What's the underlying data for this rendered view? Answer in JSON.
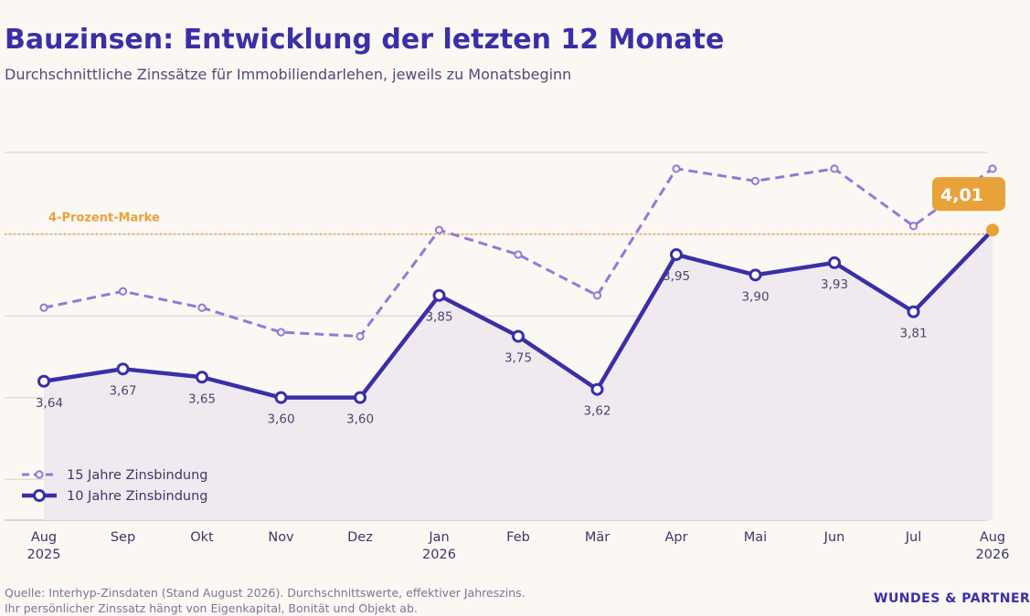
{
  "header": {
    "title": "Bauzinsen: Entwicklung der letzten 12 Monate",
    "subtitle": "Durchschnittliche Zinssätze für Immobiliendarlehen, jeweils zu Monatsbeginn"
  },
  "chart_data": {
    "type": "line",
    "categories": [
      "Aug\n2025",
      "Sep",
      "Okt",
      "Nov",
      "Dez",
      "Jan\n2026",
      "Feb",
      "Mär",
      "Apr",
      "Mai",
      "Jun",
      "Jul",
      "Aug\n2026"
    ],
    "series": [
      {
        "name": "15 Jahre Zinsbindung",
        "values": [
          3.82,
          3.86,
          3.82,
          3.76,
          3.75,
          4.01,
          3.95,
          3.85,
          4.16,
          4.13,
          4.16,
          4.02,
          4.16
        ],
        "style": "dashed",
        "color": "#9478d8"
      },
      {
        "name": "10 Jahre Zinsbindung",
        "values": [
          3.64,
          3.67,
          3.65,
          3.6,
          3.6,
          3.85,
          3.75,
          3.62,
          3.95,
          3.9,
          3.93,
          3.81,
          4.01
        ],
        "labels": [
          "3,64",
          "3,67",
          "3,65",
          "3,60",
          "3,60",
          "3,85",
          "3,75",
          "3,62",
          "3,95",
          "3,90",
          "3,93",
          "3,81",
          "4,01"
        ],
        "style": "solid",
        "color": "#3a2fa8",
        "fill_color": "#eee8f0"
      }
    ],
    "ylim": [
      3.3,
      4.2
    ],
    "grid": "horizontal",
    "reference_line": {
      "value": 4.0,
      "label": "4-Prozent-Marke",
      "color": "#e8a23a"
    },
    "highlight": {
      "index": 12,
      "label": "4,01",
      "color": "#e8a23a"
    },
    "legend_position": "bottom-left"
  },
  "footer": {
    "source_line1": "Quelle: Interhyp-Zinsdaten (Stand August 2026). Durchschnittswerte, effektiver Jahreszins.",
    "source_line2": "Ihr persönlicher Zinssatz hängt von Eigenkapital, Bonität und Objekt ab.",
    "brand": "WUNDES & PARTNER"
  }
}
